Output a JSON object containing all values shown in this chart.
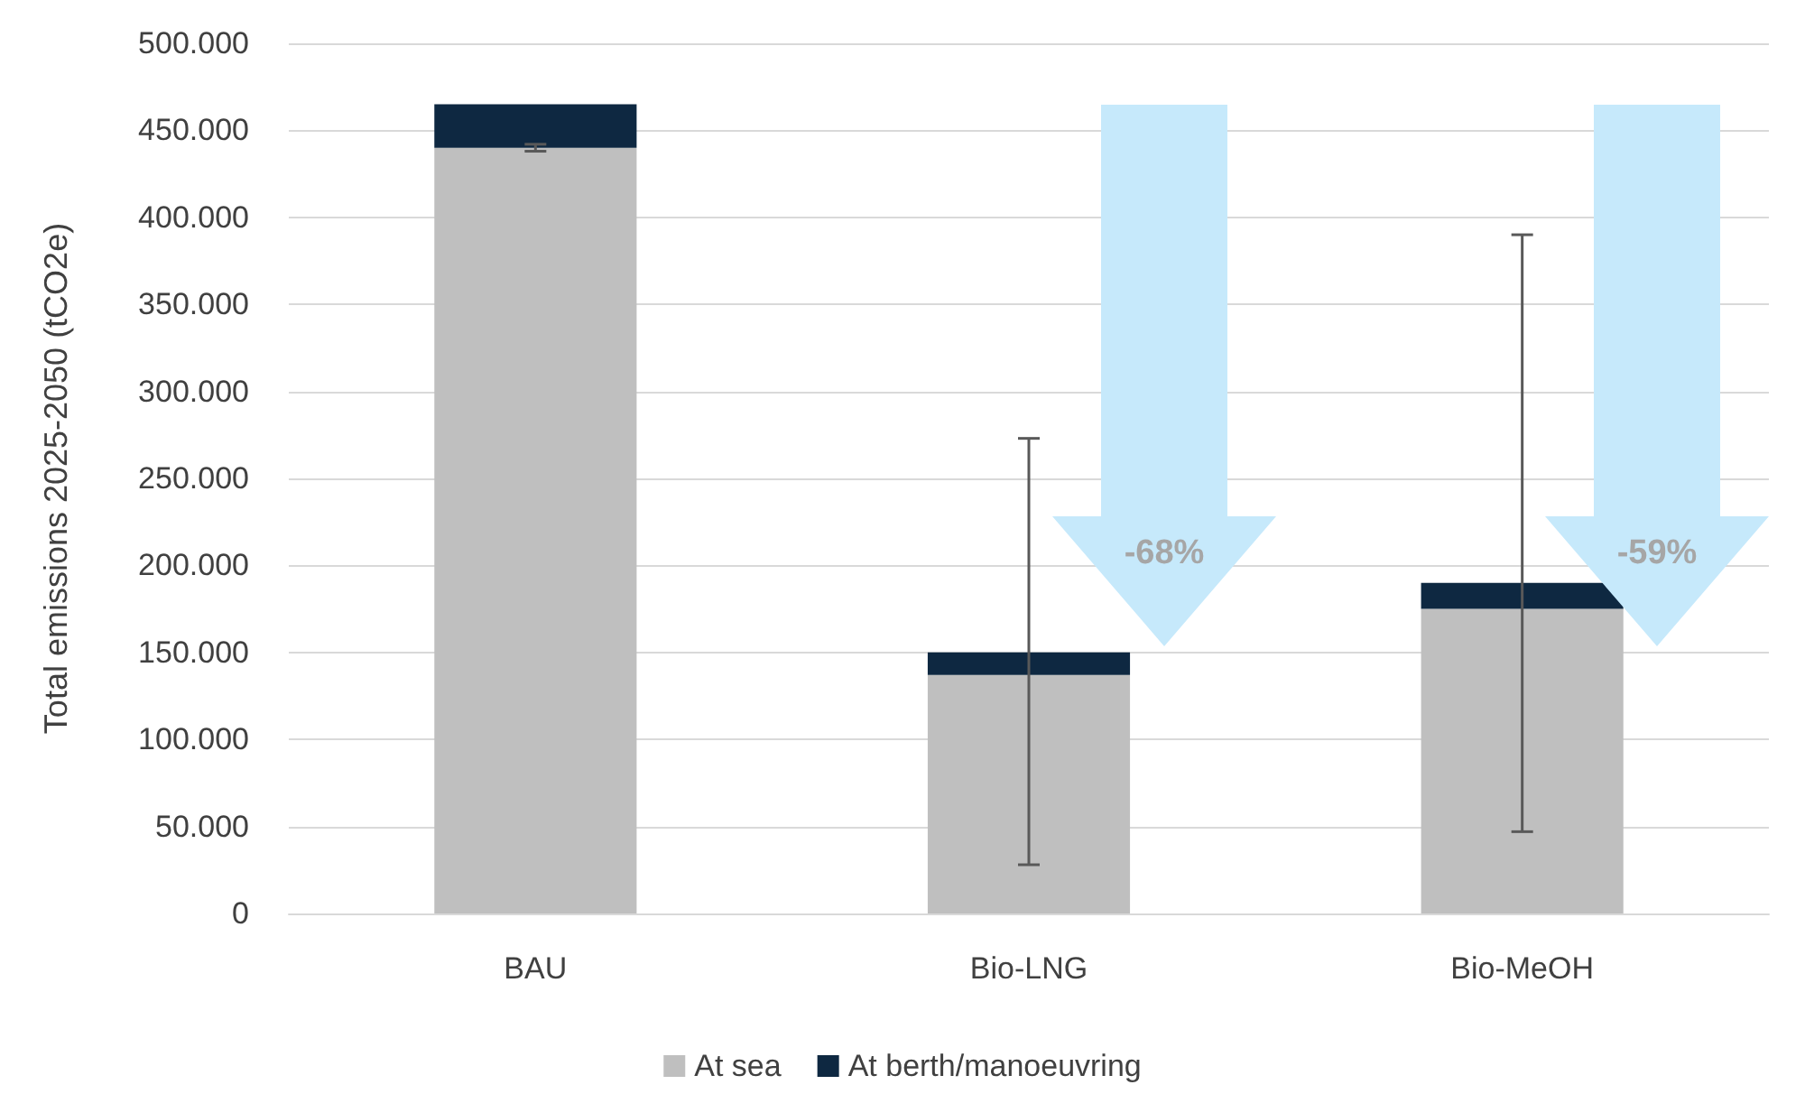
{
  "chart_data": {
    "type": "bar",
    "ylabel": "Total emissions 2025-2050 (tCO2e)",
    "categories": [
      "BAU",
      "Bio-LNG",
      "Bio-MeOH"
    ],
    "stacked": true,
    "series": [
      {
        "name": "At sea",
        "color": "#bfbfbf",
        "values": [
          440000,
          137000,
          175000
        ],
        "errors": [
          [
            438000,
            442000
          ],
          [
            28000,
            273000
          ],
          [
            47000,
            390000
          ]
        ]
      },
      {
        "name": "At berth/manoeuvring",
        "color": "#0e2841",
        "values": [
          25000,
          13000,
          15000
        ]
      }
    ],
    "ylim": [
      0,
      500000
    ],
    "yticks": [
      {
        "value": 0,
        "label": "0"
      },
      {
        "value": 50000,
        "label": "50.000"
      },
      {
        "value": 100000,
        "label": "100.000"
      },
      {
        "value": 150000,
        "label": "150.000"
      },
      {
        "value": 200000,
        "label": "200.000"
      },
      {
        "value": 250000,
        "label": "250.000"
      },
      {
        "value": 300000,
        "label": "300.000"
      },
      {
        "value": 350000,
        "label": "350.000"
      },
      {
        "value": 400000,
        "label": "400.000"
      },
      {
        "value": 450000,
        "label": "450.000"
      },
      {
        "value": 500000,
        "label": "500.000"
      }
    ],
    "grid": "y",
    "legend": "bottom",
    "annotations": [
      "-68%",
      "-59%"
    ]
  }
}
